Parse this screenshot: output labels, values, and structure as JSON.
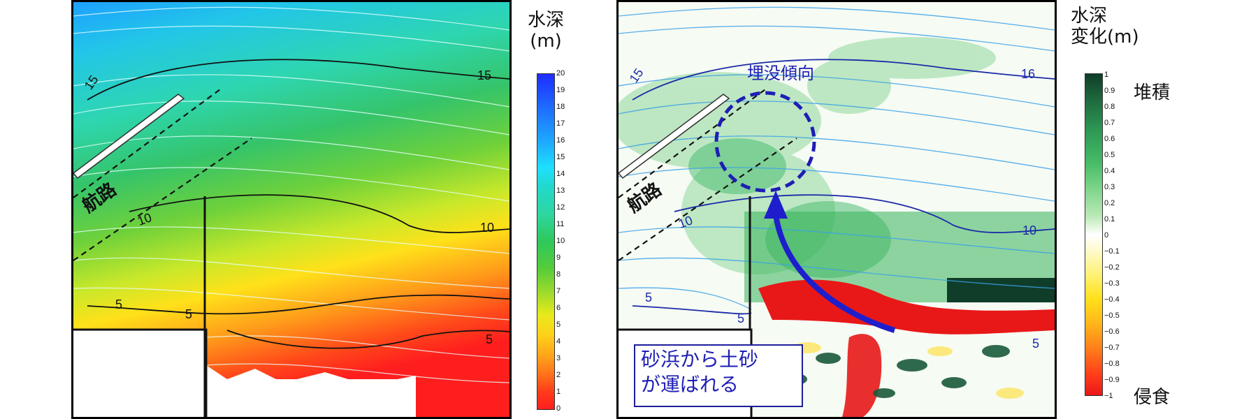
{
  "left_map": {
    "channel_label": "航路",
    "contour_labels": [
      "15",
      "15",
      "10",
      "10",
      "5",
      "5",
      "5"
    ],
    "colorbar": {
      "title_line1": "水深",
      "title_line2": "(m)",
      "ticks": [
        "20",
        "19",
        "18",
        "17",
        "16",
        "15",
        "14",
        "13",
        "12",
        "11",
        "10",
        "9",
        "8",
        "7",
        "6",
        "5",
        "4",
        "3",
        "2",
        "1",
        "0"
      ]
    }
  },
  "right_map": {
    "channel_label": "航路",
    "contour_labels": [
      "15",
      "16",
      "10",
      "10",
      "5",
      "5",
      "5"
    ],
    "annotation_top": "埋没傾向",
    "callout_line1": "砂浜から土砂",
    "callout_line2": "が運ばれる",
    "colorbar": {
      "title_line1": "水深",
      "title_line2": "変化(m)",
      "label_top": "堆積",
      "label_bottom": "侵食",
      "ticks": [
        "1",
        "0.9",
        "0.8",
        "0.7",
        "0.6",
        "0.5",
        "0.4",
        "0.3",
        "0.2",
        "0.1",
        "0",
        "−0.1",
        "−0.2",
        "−0.3",
        "−0.4",
        "−0.5",
        "−0.6",
        "−0.7",
        "−0.8",
        "−0.9",
        "−1"
      ]
    }
  },
  "colors": {
    "depth_deep": "#1e3cff",
    "depth_mid": "#2fc06a",
    "depth_shallow": "#ffe11a",
    "depth_zero": "#ff1e1e",
    "change_deposit": "#0f3d2a",
    "change_erosion": "#e81818",
    "annotation_blue": "#1e1eb4"
  }
}
